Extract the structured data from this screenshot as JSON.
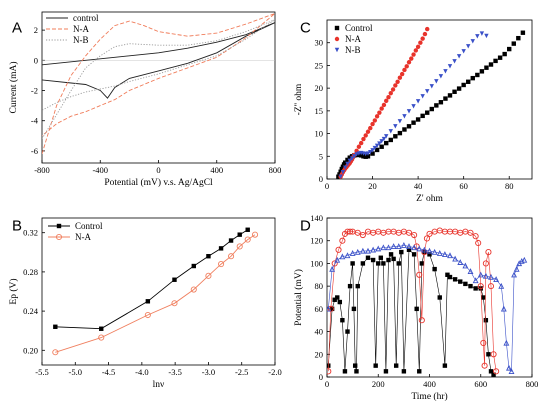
{
  "chart_data": [
    {
      "panel": "A",
      "type": "line",
      "xlabel": "Potential (mV) v.s. Ag/AgCl",
      "ylabel": "Current (mA)",
      "xlim": [
        -800,
        800
      ],
      "ylim": [
        -6.8,
        3.2
      ],
      "xticks": [
        "-800",
        "-400",
        "0",
        "400",
        "800"
      ],
      "yticks": [
        "-6",
        "-4",
        "-2",
        "0",
        "2"
      ],
      "legend_position": "top-left",
      "series": [
        {
          "name": "control",
          "color": "#222222",
          "style": "solid",
          "x": [
            -800,
            -600,
            -400,
            -300,
            -200,
            0,
            200,
            400,
            600,
            800,
            800,
            600,
            400,
            200,
            0,
            -200,
            -300,
            -350,
            -400,
            -500,
            -600,
            -800
          ],
          "y": [
            -0.3,
            -0.1,
            0.1,
            0.2,
            0.3,
            0.5,
            0.8,
            1.2,
            1.7,
            2.5,
            2.5,
            1.6,
            0.5,
            -0.2,
            -0.7,
            -1.2,
            -1.8,
            -2.5,
            -2.0,
            -1.6,
            -1.5,
            -1.3
          ]
        },
        {
          "name": "N-A",
          "color": "#f07c5a",
          "style": "dashed",
          "x": [
            -800,
            -700,
            -600,
            -500,
            -400,
            -300,
            -200,
            -100,
            0,
            200,
            400,
            600,
            800,
            800,
            600,
            400,
            200,
            0,
            -200,
            -300,
            -400,
            -500,
            -600,
            -700,
            -800
          ],
          "y": [
            -6.2,
            -3.0,
            -1.0,
            0.3,
            1.4,
            2.3,
            2.6,
            2.3,
            1.9,
            1.6,
            1.8,
            2.4,
            3.1,
            3.1,
            1.5,
            0.2,
            -0.5,
            -1.2,
            -2.0,
            -2.6,
            -3.0,
            -3.4,
            -3.7,
            -4.2,
            -5.0
          ]
        },
        {
          "name": "N-B",
          "color": "#999999",
          "style": "dotted",
          "x": [
            -800,
            -600,
            -500,
            -400,
            -300,
            -200,
            0,
            200,
            400,
            600,
            800,
            800,
            600,
            400,
            200,
            0,
            -200,
            -300,
            -400,
            -500,
            -600,
            -700,
            -800
          ],
          "y": [
            -5.2,
            -2.0,
            -0.5,
            0.3,
            0.9,
            1.1,
            1.0,
            1.0,
            1.3,
            1.9,
            2.7,
            2.7,
            1.4,
            0.3,
            -0.3,
            -0.9,
            -1.4,
            -1.7,
            -1.9,
            -2.1,
            -2.4,
            -2.8,
            -3.3
          ]
        }
      ]
    },
    {
      "panel": "B",
      "type": "line",
      "xlabel": "lnν",
      "ylabel": "Ep (V)",
      "xlim": [
        -5.5,
        -2.0
      ],
      "ylim": [
        0.185,
        0.335
      ],
      "xticks": [
        "-5.5",
        "-5.0",
        "-4.5",
        "-4.0",
        "-3.5",
        "-3.0",
        "-2.5",
        "-2.0"
      ],
      "yticks": [
        "0.20",
        "0.24",
        "0.28",
        "0.32"
      ],
      "legend_position": "top-left",
      "series": [
        {
          "name": "Control",
          "color": "#000000",
          "marker": "square-filled",
          "x": [
            -5.3,
            -4.61,
            -3.91,
            -3.51,
            -3.22,
            -3.0,
            -2.81,
            -2.66,
            -2.53,
            -2.41
          ],
          "y": [
            0.224,
            0.222,
            0.25,
            0.272,
            0.286,
            0.296,
            0.304,
            0.312,
            0.318,
            0.323
          ]
        },
        {
          "name": "N-A",
          "color": "#f08060",
          "marker": "circle-open",
          "x": [
            -5.3,
            -4.61,
            -3.91,
            -3.51,
            -3.22,
            -3.0,
            -2.81,
            -2.66,
            -2.53,
            -2.41,
            -2.3
          ],
          "y": [
            0.198,
            0.213,
            0.236,
            0.248,
            0.262,
            0.276,
            0.288,
            0.296,
            0.306,
            0.313,
            0.318
          ]
        }
      ]
    },
    {
      "panel": "C",
      "type": "scatter",
      "xlabel": "Z' ohm",
      "ylabel": "-Z'' ohm",
      "xlim": [
        0,
        90
      ],
      "ylim": [
        0,
        35
      ],
      "xticks": [
        "0",
        "20",
        "40",
        "60",
        "80"
      ],
      "yticks": [
        "0",
        "5",
        "10",
        "15",
        "20",
        "25",
        "30"
      ],
      "legend_position": "top-left",
      "series": [
        {
          "name": "Control",
          "color": "#000000",
          "marker": "square",
          "x": [
            5,
            5.5,
            6,
            6.5,
            7,
            7.5,
            8,
            9,
            10,
            11,
            12,
            13,
            14,
            15,
            16,
            17,
            18,
            20,
            22,
            24,
            26,
            28,
            30,
            32,
            34,
            36,
            38,
            40,
            42,
            44,
            46,
            48,
            50,
            52,
            54,
            56,
            58,
            60,
            62,
            64,
            66,
            68,
            70,
            72,
            74,
            76,
            78,
            80,
            82,
            84,
            86
          ],
          "y": [
            0.5,
            1,
            1.6,
            2.2,
            2.7,
            3.2,
            3.6,
            4.2,
            4.7,
            5.0,
            5.2,
            5.3,
            5.3,
            5.2,
            5.0,
            4.9,
            5.0,
            5.6,
            6.4,
            7.1,
            7.9,
            8.6,
            9.4,
            10.1,
            10.9,
            11.6,
            12.4,
            13.1,
            13.9,
            14.6,
            15.4,
            16.2,
            16.9,
            17.7,
            18.4,
            19.2,
            19.9,
            20.7,
            21.4,
            22.2,
            22.9,
            23.7,
            24.5,
            25.2,
            26.0,
            26.7,
            27.5,
            28.6,
            29.8,
            31.0,
            32.2
          ]
        },
        {
          "name": "N-A",
          "color": "#e8332b",
          "marker": "circle",
          "x": [
            6,
            6.5,
            7,
            7.5,
            8,
            8.5,
            9,
            9.5,
            10,
            10.5,
            11,
            11.5,
            12,
            13,
            14,
            15,
            16,
            17,
            18,
            19,
            20,
            21,
            22,
            23,
            24,
            25,
            26,
            27,
            28,
            29,
            30,
            31,
            32,
            33,
            34,
            35,
            36,
            37,
            38,
            39,
            40,
            41,
            42,
            43,
            44
          ],
          "y": [
            0.5,
            1.0,
            1.5,
            1.9,
            2.3,
            2.6,
            2.9,
            3.2,
            3.5,
            3.9,
            4.3,
            4.8,
            5.3,
            6.2,
            7.1,
            7.9,
            8.8,
            9.6,
            10.4,
            11.2,
            12.1,
            12.9,
            13.8,
            14.6,
            15.5,
            16.3,
            17.2,
            18.0,
            18.9,
            19.7,
            20.6,
            21.4,
            22.3,
            23.1,
            24.0,
            24.8,
            25.7,
            26.5,
            27.4,
            28.3,
            29.1,
            30.0,
            30.9,
            31.9,
            33.0
          ]
        },
        {
          "name": "N-B",
          "color": "#3a50c8",
          "marker": "triangle-down",
          "x": [
            6,
            7,
            8,
            9,
            10,
            11,
            12,
            13,
            14,
            15,
            16,
            17,
            18,
            19,
            20,
            21,
            22,
            23,
            24,
            25,
            26,
            28,
            30,
            32,
            34,
            36,
            38,
            40,
            42,
            44,
            46,
            48,
            50,
            52,
            54,
            56,
            58,
            60,
            62,
            64,
            66,
            68,
            70
          ],
          "y": [
            0.5,
            1.5,
            2.5,
            3.3,
            4.0,
            4.5,
            5.0,
            5.4,
            5.6,
            5.7,
            5.6,
            5.5,
            5.6,
            5.9,
            6.3,
            6.8,
            7.3,
            7.8,
            8.3,
            8.8,
            9.4,
            10.5,
            11.6,
            12.7,
            13.8,
            14.9,
            16.0,
            17.1,
            18.2,
            19.3,
            20.4,
            21.5,
            22.6,
            23.7,
            24.8,
            25.9,
            27.0,
            28.1,
            29.2,
            30.3,
            31.4,
            32.0,
            31.5
          ]
        }
      ]
    },
    {
      "panel": "D",
      "type": "line",
      "xlabel": "Time (hr)",
      "ylabel": "Potential (mV)",
      "xlim": [
        0,
        800
      ],
      "ylim": [
        0,
        140
      ],
      "xticks": [
        "0",
        "200",
        "400",
        "600",
        "800"
      ],
      "yticks": [
        "0",
        "20",
        "40",
        "60",
        "80",
        "100",
        "120",
        "140"
      ],
      "series": [
        {
          "name": "Control",
          "color": "#000000",
          "marker": "square",
          "x": [
            5,
            20,
            30,
            40,
            50,
            60,
            70,
            80,
            90,
            100,
            105,
            110,
            115,
            120,
            140,
            160,
            180,
            190,
            200,
            210,
            220,
            230,
            240,
            250,
            260,
            270,
            280,
            290,
            300,
            320,
            340,
            350,
            360,
            370,
            380,
            400,
            420,
            440,
            460,
            470,
            480,
            500,
            520,
            540,
            560,
            580,
            600,
            610,
            620,
            630,
            640,
            650
          ],
          "y": [
            10,
            60,
            68,
            70,
            66,
            50,
            5,
            40,
            80,
            100,
            60,
            10,
            5,
            80,
            100,
            105,
            103,
            10,
            100,
            105,
            100,
            5,
            103,
            108,
            104,
            10,
            100,
            110,
            5,
            112,
            108,
            60,
            5,
            100,
            110,
            108,
            95,
            70,
            10,
            90,
            88,
            86,
            84,
            82,
            80,
            78,
            78,
            70,
            50,
            20,
            5,
            2
          ]
        },
        {
          "name": "N-A",
          "color": "#e8332b",
          "marker": "circle-open",
          "x": [
            5,
            15,
            30,
            45,
            60,
            70,
            80,
            90,
            100,
            120,
            140,
            160,
            180,
            200,
            220,
            240,
            260,
            280,
            300,
            320,
            340,
            350,
            360,
            370,
            380,
            390,
            400,
            420,
            440,
            460,
            480,
            500,
            520,
            540,
            560,
            580,
            590,
            600,
            610,
            615,
            620,
            630,
            640,
            650,
            660
          ],
          "y": [
            5,
            60,
            100,
            112,
            120,
            126,
            128,
            128,
            128,
            127,
            125,
            128,
            127,
            128,
            127,
            128,
            128,
            127,
            128,
            127,
            125,
            115,
            90,
            50,
            110,
            122,
            126,
            128,
            129,
            128,
            128,
            128,
            127,
            128,
            127,
            124,
            118,
            80,
            30,
            10,
            100,
            110,
            80,
            20,
            5
          ]
        },
        {
          "name": "N-B",
          "color": "#3a50c8",
          "marker": "triangle-open",
          "x": [
            5,
            20,
            40,
            60,
            80,
            100,
            120,
            140,
            160,
            180,
            200,
            220,
            240,
            260,
            280,
            300,
            320,
            340,
            360,
            380,
            400,
            420,
            440,
            460,
            480,
            500,
            520,
            540,
            560,
            580,
            600,
            620,
            640,
            660,
            680,
            690,
            700,
            710,
            720,
            730,
            740,
            750,
            760,
            770
          ],
          "y": [
            60,
            95,
            103,
            106,
            107,
            109,
            110,
            111,
            111,
            112,
            113,
            114,
            114,
            115,
            115,
            116,
            115,
            114,
            113,
            112,
            111,
            110,
            109,
            108,
            107,
            104,
            101,
            98,
            93,
            85,
            90,
            89,
            88,
            86,
            80,
            60,
            30,
            8,
            5,
            90,
            95,
            100,
            102,
            103
          ]
        }
      ]
    }
  ],
  "panel_labels": [
    "A",
    "B",
    "C",
    "D"
  ]
}
